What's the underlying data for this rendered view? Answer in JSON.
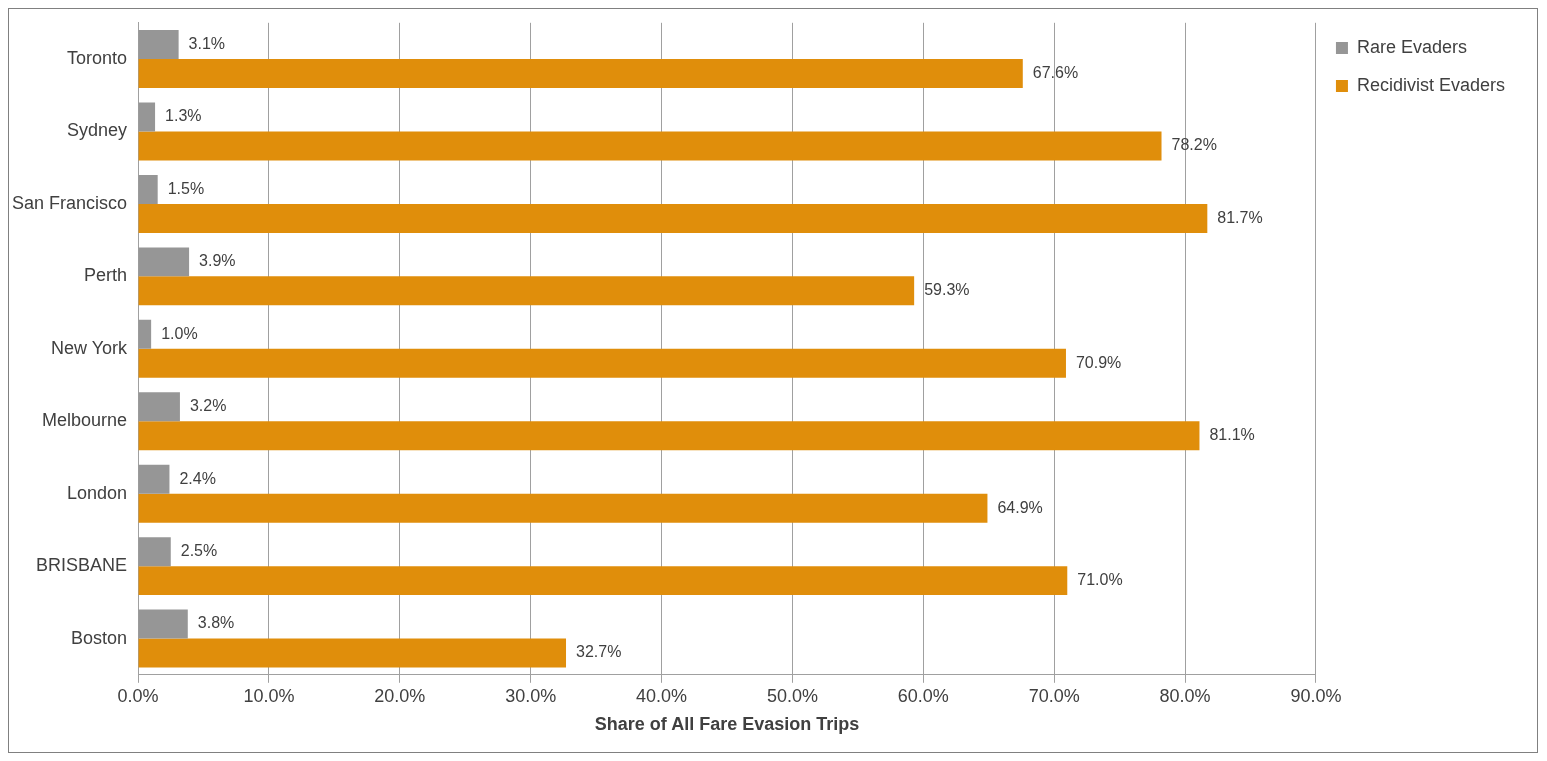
{
  "chart_data": {
    "type": "bar",
    "orientation": "horizontal",
    "xlabel": "Share of All Fare Evasion Trips",
    "categories": [
      "Toronto",
      "Sydney",
      "San Francisco",
      "Perth",
      "New York",
      "Melbourne",
      "London",
      "BRISBANE",
      "Boston"
    ],
    "series": [
      {
        "name": "Rare Evaders",
        "color": "#969696",
        "values": [
          3.1,
          1.3,
          1.5,
          3.9,
          1.0,
          3.2,
          2.4,
          2.5,
          3.8
        ],
        "value_labels": [
          "3.1%",
          "1.3%",
          "1.5%",
          "3.9%",
          "1.0%",
          "3.2%",
          "2.4%",
          "2.5%",
          "3.8%"
        ]
      },
      {
        "name": "Recidivist Evaders",
        "color": "#e08e0b",
        "values": [
          67.6,
          78.2,
          81.7,
          59.3,
          70.9,
          81.1,
          64.9,
          71.0,
          32.7
        ],
        "value_labels": [
          "67.6%",
          "78.2%",
          "81.7%",
          "59.3%",
          "70.9%",
          "81.1%",
          "64.9%",
          "71.0%",
          "32.7%"
        ]
      }
    ],
    "xlim": [
      0,
      90
    ],
    "xticks": [
      {
        "value": 0,
        "label": "0.0%"
      },
      {
        "value": 10,
        "label": "10.0%"
      },
      {
        "value": 20,
        "label": "20.0%"
      },
      {
        "value": 30,
        "label": "30.0%"
      },
      {
        "value": 40,
        "label": "40.0%"
      },
      {
        "value": 50,
        "label": "50.0%"
      },
      {
        "value": 60,
        "label": "60.0%"
      },
      {
        "value": 70,
        "label": "70.0%"
      },
      {
        "value": 80,
        "label": "80.0%"
      },
      {
        "value": 90,
        "label": "90.0%"
      }
    ],
    "grid": "x",
    "legend": "top right"
  }
}
